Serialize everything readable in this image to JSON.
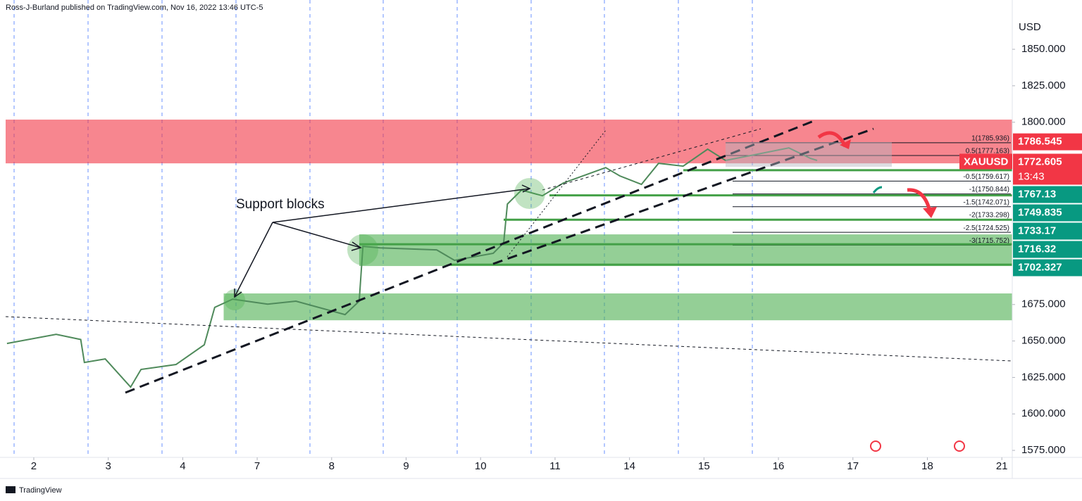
{
  "chart_data": {
    "type": "line",
    "title": "Ross-J-Burland published on TradingView.com, Nov 16, 2022 13:46 UTC-5",
    "y_axis_label": "USD",
    "symbol": "XAUUSD",
    "countdown": "13:43",
    "annotation": "Support blocks",
    "footer": "TradingView",
    "xlim": [
      -0.378,
      13.14
    ],
    "xticks": [
      {
        "value": 0,
        "label": "2"
      },
      {
        "value": 1,
        "label": "3"
      },
      {
        "value": 2,
        "label": "4"
      },
      {
        "value": 3,
        "label": "7"
      },
      {
        "value": 4,
        "label": "8"
      },
      {
        "value": 5,
        "label": "9"
      },
      {
        "value": 6,
        "label": "10"
      },
      {
        "value": 7,
        "label": "11"
      },
      {
        "value": 8,
        "label": "14"
      },
      {
        "value": 9,
        "label": "15"
      },
      {
        "value": 10,
        "label": "16"
      },
      {
        "value": 11,
        "label": "17"
      },
      {
        "value": 12,
        "label": "18"
      },
      {
        "value": 13,
        "label": "21"
      }
    ],
    "ylim": [
      1570.2,
      1883.8
    ],
    "yticks": [
      {
        "value": 1850,
        "label": "1850.000"
      },
      {
        "value": 1825,
        "label": "1825.000"
      },
      {
        "value": 1800,
        "label": "1800.000"
      },
      {
        "value": 1675,
        "label": "1675.000"
      },
      {
        "value": 1650,
        "label": "1650.000"
      },
      {
        "value": 1625,
        "label": "1625.000"
      },
      {
        "value": 1600,
        "label": "1600.000"
      },
      {
        "value": 1575,
        "label": "1575.000"
      }
    ],
    "series": [
      {
        "name": "XAUUSD",
        "color": "#4f8a5b",
        "x": [
          -0.36,
          0.3,
          0.63,
          0.68,
          0.96,
          1.3,
          1.44,
          1.91,
          2.29,
          2.43,
          2.67,
          3.14,
          3.52,
          4.18,
          4.37,
          4.42,
          4.65,
          5.41,
          5.65,
          6.17,
          6.31,
          6.36,
          6.55,
          6.83,
          7.11,
          7.68,
          7.87,
          8.16,
          8.39,
          8.72,
          9.05,
          9.29,
          9.67,
          10.14,
          10.43,
          10.52
        ],
        "values": [
          1648.3,
          1654.6,
          1651.0,
          1635.3,
          1637.7,
          1618.4,
          1630.5,
          1633.9,
          1647.4,
          1673.0,
          1678.7,
          1675.3,
          1677.3,
          1668.1,
          1677.3,
          1714.9,
          1713.9,
          1712.5,
          1705.3,
          1710.1,
          1717.3,
          1743.9,
          1753.5,
          1749.6,
          1758.3,
          1768.9,
          1763.2,
          1757.4,
          1771.8,
          1769.9,
          1781.5,
          1773.8,
          1777.6,
          1782.4,
          1775.2,
          1773.8
        ]
      }
    ],
    "zones": [
      {
        "from": 1771.8,
        "to": 1801.8,
        "x_from": -0.378,
        "color": "rgba(242,54,69,0.6)"
      },
      {
        "from": 1701.4,
        "to": 1723.1,
        "x_from": 4.37,
        "color": "rgba(76,175,80,0.6)"
      },
      {
        "from": 1664.2,
        "to": 1682.6,
        "x_from": 2.55,
        "color": "rgba(76,175,80,0.6)"
      }
    ],
    "price_labels": [
      {
        "price": 1786.545,
        "color": "#f23645"
      },
      {
        "price": 1772.605,
        "color": "#f23645"
      },
      {
        "price": 1767.13,
        "color": "#089981"
      },
      {
        "price": 1749.835,
        "color": "#089981"
      },
      {
        "price": 1733.17,
        "color": "#089981"
      },
      {
        "price": 1716.32,
        "color": "#089981"
      },
      {
        "price": 1702.327,
        "color": "#089981"
      }
    ],
    "fib_levels": [
      {
        "value": 1785.936,
        "label": "1(1785.936)"
      },
      {
        "value": 1777.163,
        "label": "0.5(1777.163)"
      },
      {
        "value": 1759.617,
        "label": "-0.5(1759.617)"
      },
      {
        "value": 1750.844,
        "label": "-1(1750.844)"
      },
      {
        "value": 1742.071,
        "label": "-1.5(1742.071)"
      },
      {
        "value": 1733.298,
        "label": "-2(1733.298)"
      },
      {
        "value": 1724.525,
        "label": "-2.5(1724.525)"
      },
      {
        "value": 1715.752,
        "label": "-3(1715.752)"
      }
    ]
  }
}
